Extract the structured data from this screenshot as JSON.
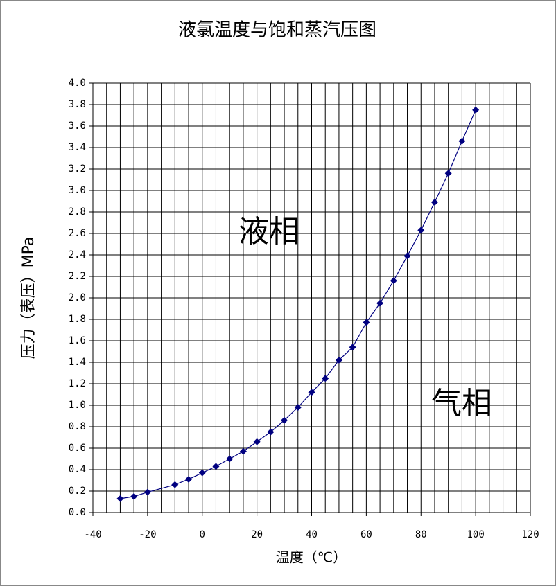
{
  "chart_data": {
    "type": "line",
    "title": "液氯温度与饱和蒸汽压图",
    "x_label": "温度（℃）",
    "y_label": "压力（表压）MPa",
    "annotations": [
      "液相",
      "气相"
    ],
    "x": [
      -30,
      -25,
      -20,
      -10,
      -5,
      0,
      5,
      10,
      15,
      20,
      25,
      30,
      35,
      40,
      45,
      50,
      55,
      60,
      65,
      70,
      75,
      80,
      85,
      90,
      95,
      100
    ],
    "series": [
      {
        "color": "#000080",
        "values": [
          0.13,
          0.15,
          0.19,
          0.26,
          0.31,
          0.37,
          0.43,
          0.5,
          0.57,
          0.66,
          0.75,
          0.86,
          0.98,
          1.12,
          1.25,
          1.42,
          1.54,
          1.77,
          1.95,
          2.16,
          2.39,
          2.63,
          2.89,
          3.16,
          3.46,
          3.75
        ]
      }
    ],
    "xlim": [
      -40,
      120
    ],
    "xticks": [
      -40,
      -20,
      0,
      20,
      40,
      60,
      80,
      100,
      120
    ],
    "xgrid": [
      -40,
      -35,
      -30,
      -25,
      -20,
      -15,
      -10,
      -5,
      0,
      5,
      10,
      15,
      20,
      25,
      30,
      35,
      40,
      45,
      50,
      55,
      60,
      65,
      70,
      75,
      80,
      85,
      90,
      95,
      100,
      105,
      110,
      115,
      120
    ],
    "ylim": [
      0,
      4
    ],
    "yticks": [
      {
        "value": 0,
        "label": "0.0"
      },
      0.2,
      0.4,
      0.6,
      0.8,
      {
        "value": 1,
        "label": "1.0"
      },
      1.2,
      1.4,
      1.6,
      1.8,
      {
        "value": 2,
        "label": "2.0"
      },
      2.2,
      2.4,
      2.6,
      2.8,
      {
        "value": 3,
        "label": "3.0"
      },
      3.2,
      3.4,
      3.6,
      3.8,
      {
        "value": 4,
        "label": "4.0"
      }
    ],
    "grid": true,
    "annotation_color": "#1e50e6"
  }
}
